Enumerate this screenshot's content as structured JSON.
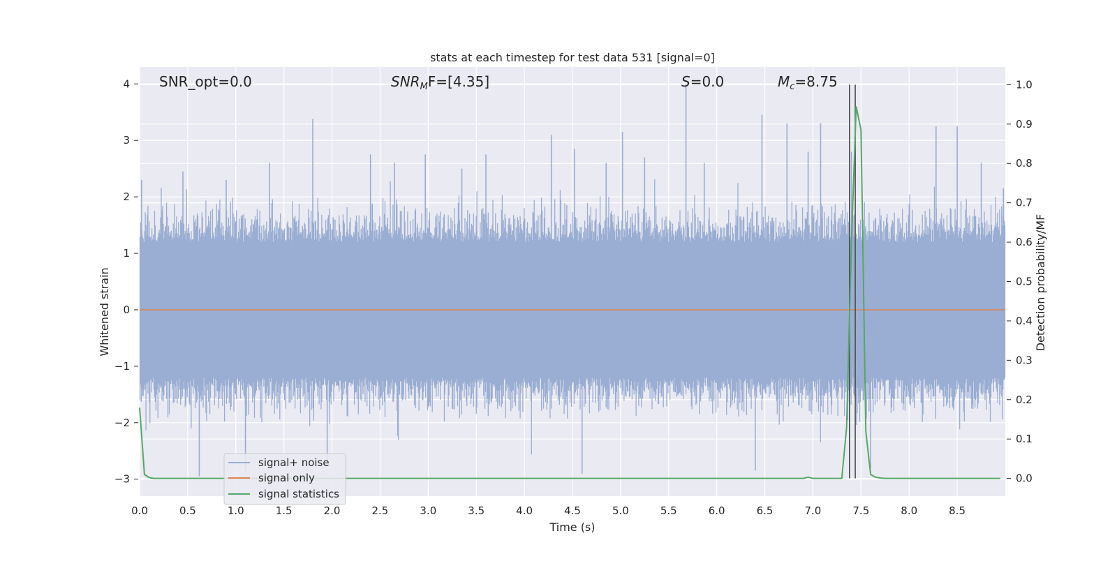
{
  "chart_data": {
    "type": "line",
    "title": "stats at each timestep for test data 531 [signal=0]",
    "xlabel": "Time (s)",
    "ylabel_left": "Whitened strain",
    "ylabel_right": "Detection probability/MF",
    "xlim": [
      0.0,
      9.0
    ],
    "ylim_left": [
      -3.3,
      4.3
    ],
    "ylim_right": [
      -0.045,
      1.045
    ],
    "x_ticks": [
      0.0,
      0.5,
      1.0,
      1.5,
      2.0,
      2.5,
      3.0,
      3.5,
      4.0,
      4.5,
      5.0,
      5.5,
      6.0,
      6.5,
      7.0,
      7.5,
      8.0,
      8.5
    ],
    "x_tick_labels": [
      "0.0",
      "0.5",
      "1.0",
      "1.5",
      "2.0",
      "2.5",
      "3.0",
      "3.5",
      "4.0",
      "4.5",
      "5.0",
      "5.5",
      "6.0",
      "6.5",
      "7.0",
      "7.5",
      "8.0",
      "8.5"
    ],
    "y_left_ticks": [
      4,
      3,
      2,
      1,
      0,
      -1,
      -2,
      -3
    ],
    "y_left_tick_labels": [
      "4",
      "3",
      "2",
      "1",
      "0",
      "−1",
      "−2",
      "−3"
    ],
    "y_right_ticks": [
      1.0,
      0.9,
      0.8,
      0.7,
      0.6,
      0.5,
      0.4,
      0.3,
      0.2,
      0.1,
      0.0
    ],
    "y_right_tick_labels": [
      "1.0",
      "0.9",
      "0.8",
      "0.7",
      "0.6",
      "0.5",
      "0.4",
      "0.3",
      "0.2",
      "0.1",
      "0.0"
    ],
    "grid": true,
    "legend_position": "lower-left",
    "annotations": {
      "snr_opt": "SNR_opt=0.0",
      "snr_mf_main": "SNR",
      "snr_mf_sub": "M",
      "snr_mf_rest": "F=[4.35]",
      "s_main": "S",
      "s_rest": "=0.0",
      "mc_main": "M",
      "mc_sub": "c",
      "mc_rest": "=8.75"
    },
    "vertical_lines_x": [
      7.38,
      7.44
    ],
    "series": [
      {
        "name": "signal+ noise",
        "color": "#9aadd2",
        "axis": "left",
        "style": "noise band",
        "core_amplitude": 1.2,
        "peaks": [
          {
            "x": 0.02,
            "y": 2.3
          },
          {
            "x": 0.45,
            "y": 2.45
          },
          {
            "x": 0.62,
            "y": -2.95
          },
          {
            "x": 0.9,
            "y": 2.3
          },
          {
            "x": 1.1,
            "y": -2.85
          },
          {
            "x": 1.35,
            "y": 2.6
          },
          {
            "x": 1.8,
            "y": 3.38
          },
          {
            "x": 1.95,
            "y": -2.7
          },
          {
            "x": 2.4,
            "y": 2.75
          },
          {
            "x": 2.65,
            "y": 2.6
          },
          {
            "x": 2.97,
            "y": 2.75
          },
          {
            "x": 3.35,
            "y": 2.5
          },
          {
            "x": 3.6,
            "y": 2.75
          },
          {
            "x": 4.28,
            "y": 3.1
          },
          {
            "x": 4.52,
            "y": 2.85
          },
          {
            "x": 4.6,
            "y": -2.9
          },
          {
            "x": 4.85,
            "y": 2.6
          },
          {
            "x": 5.02,
            "y": 3.15
          },
          {
            "x": 5.25,
            "y": 2.7
          },
          {
            "x": 5.68,
            "y": 4.0
          },
          {
            "x": 5.87,
            "y": 2.6
          },
          {
            "x": 6.4,
            "y": -2.85
          },
          {
            "x": 6.47,
            "y": 3.45
          },
          {
            "x": 6.73,
            "y": 3.3
          },
          {
            "x": 6.95,
            "y": 2.8
          },
          {
            "x": 7.08,
            "y": 3.3
          },
          {
            "x": 7.4,
            "y": 2.8
          },
          {
            "x": 7.6,
            "y": -2.8
          },
          {
            "x": 8.28,
            "y": 3.25
          },
          {
            "x": 8.5,
            "y": 3.25
          },
          {
            "x": 8.75,
            "y": 2.6
          },
          {
            "x": 8.98,
            "y": 2.15
          }
        ]
      },
      {
        "name": "signal only",
        "color": "#dd8452",
        "axis": "left",
        "x": [
          0.0,
          9.0
        ],
        "y": [
          0.0,
          0.0
        ]
      },
      {
        "name": "signal statistics",
        "color": "#55a868",
        "axis": "right",
        "x": [
          0.0,
          0.05,
          0.1,
          0.15,
          0.2,
          1.0,
          2.0,
          3.0,
          4.0,
          5.0,
          6.0,
          6.9,
          6.95,
          7.0,
          7.1,
          7.2,
          7.3,
          7.35,
          7.4,
          7.45,
          7.5,
          7.55,
          7.6,
          7.65,
          7.7,
          7.75,
          8.0,
          8.5,
          8.95
        ],
        "y": [
          0.18,
          0.01,
          0.002,
          0.0,
          0.0,
          0.0,
          0.0,
          0.0,
          0.0,
          0.0,
          0.0,
          0.0,
          0.003,
          0.0,
          0.0,
          0.0,
          0.0,
          0.13,
          0.6,
          0.945,
          0.885,
          0.12,
          0.01,
          0.003,
          0.001,
          0.0,
          0.0,
          0.0,
          0.0
        ]
      }
    ]
  }
}
